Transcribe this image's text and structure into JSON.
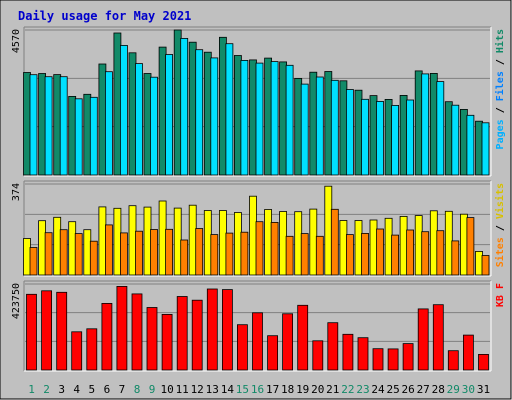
{
  "chart_data": {
    "type": "bar",
    "title": "Daily usage for May 2021",
    "categories": [
      "1",
      "2",
      "3",
      "4",
      "5",
      "6",
      "7",
      "8",
      "9",
      "10",
      "11",
      "12",
      "13",
      "14",
      "15",
      "16",
      "17",
      "18",
      "19",
      "20",
      "21",
      "22",
      "23",
      "24",
      "25",
      "26",
      "27",
      "28",
      "29",
      "30",
      "31"
    ],
    "weekend_days": [
      "1",
      "2",
      "8",
      "9",
      "15",
      "16",
      "22",
      "23",
      "29",
      "30"
    ],
    "colors": {
      "background": "#c0c0c0",
      "title": "#0000cc",
      "hits": "#128a68",
      "files": "#00e0ff",
      "pages": "#0080ff",
      "visits": "#ffff00",
      "sites": "#ff8000",
      "kbf": "#ff0000",
      "weekday_label": "#000000",
      "weekend_label": "#128a68"
    },
    "panels": [
      {
        "axis_max_label": "4570",
        "ymax": 4570,
        "legend": [
          {
            "text": "Pages",
            "color": "#00b0ff"
          },
          {
            "text": " / ",
            "color": "#000000"
          },
          {
            "text": "Files",
            "color": "#0080ff"
          },
          {
            "text": " / ",
            "color": "#000000"
          },
          {
            "text": "Hits",
            "color": "#128a68"
          }
        ],
        "series": [
          {
            "key": "hits",
            "values": [
              3232,
              3199,
              3165,
              2476,
              2543,
              3499,
              4474,
              3852,
              3199,
              4030,
              4570,
              4186,
              3869,
              4340,
              3766,
              3629,
              3683,
              3564,
              3046,
              3240,
              3262,
              2970,
              2672,
              2501,
              2384,
              2509,
              3282,
              3202,
              2311,
              2066,
              1697
            ]
          },
          {
            "key": "files",
            "values": [
              3162,
              3099,
              3097,
              2401,
              2450,
              3257,
              4084,
              3511,
              3082,
              3799,
              4304,
              3949,
              3690,
              4138,
              3613,
              3527,
              3574,
              3458,
              2864,
              3090,
              2986,
              2694,
              2385,
              2320,
              2194,
              2365,
              3185,
              2943,
              2201,
              1881,
              1645
            ]
          }
        ]
      },
      {
        "axis_max_label": "374",
        "ymax": 374,
        "legend": [
          {
            "text": "Sites",
            "color": "#ff8000"
          },
          {
            "text": " / ",
            "color": "#000000"
          },
          {
            "text": "Visits",
            "color": "#d8c000"
          }
        ],
        "series": [
          {
            "key": "visits",
            "values": [
              150,
              223,
              237,
              219,
              186,
              280,
              274,
              285,
              279,
              304,
              275,
              287,
              265,
              265,
              257,
              324,
              269,
              261,
              260,
              271,
              365,
              224,
              224,
              226,
              233,
              241,
              244,
              264,
              262,
              250,
              97
            ]
          },
          {
            "key": "sites",
            "values": [
              113,
              174,
              186,
              170,
              139,
              206,
              173,
              180,
              187,
              188,
              144,
              191,
              166,
              172,
              176,
              219,
              216,
              159,
              170,
              159,
              270,
              166,
              171,
              189,
              164,
              185,
              178,
              182,
              140,
              236,
              80
            ]
          }
        ]
      },
      {
        "axis_max_label": "423750",
        "ymax": 423750,
        "legend": [
          {
            "text": "KB F",
            "color": "#ff0000"
          }
        ],
        "series": [
          {
            "key": "kbf",
            "values": [
              373000,
              390000,
              383000,
              188000,
              203000,
              328000,
              412000,
              375000,
              308000,
              274000,
              362000,
              344000,
              399000,
              396000,
              223000,
              282000,
              169000,
              277000,
              319000,
              144000,
              233000,
              176000,
              159000,
              105000,
              104000,
              130000,
              301000,
              322000,
              95000,
              172000,
              77000
            ]
          }
        ]
      }
    ]
  }
}
